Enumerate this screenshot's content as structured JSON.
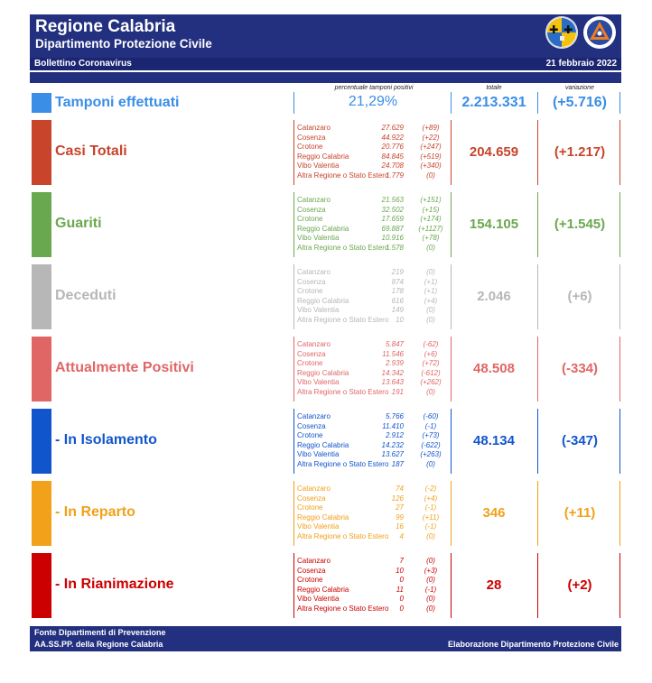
{
  "header": {
    "title": "Regione Calabria",
    "subtitle": "Dipartimento Protezione Civile",
    "bulletin": "Bollettino Coronavirus",
    "date": "21 febbraio 2022"
  },
  "columns": {
    "percent_label": "percentuale tamponi positivi",
    "total_label": "totale",
    "var_label": "variazione"
  },
  "tamponi": {
    "label": "Tamponi effettuati",
    "percent": "21,29%",
    "total": "2.213.331",
    "var": "(+5.716)",
    "color": "#3a8ee6"
  },
  "rows": [
    {
      "label": "Casi Totali",
      "color": "#c8442b",
      "total": "204.659",
      "var": "(+1.217)",
      "provinces": [
        {
          "name": "Catanzaro",
          "value": "27.629",
          "delta": "(+89)"
        },
        {
          "name": "Cosenza",
          "value": "44.922",
          "delta": "(+22)"
        },
        {
          "name": "Crotone",
          "value": "20.776",
          "delta": "(+247)"
        },
        {
          "name": "Reggio Calabria",
          "value": "84.845",
          "delta": "(+519)"
        },
        {
          "name": "Vibo Valentia",
          "value": "24.708",
          "delta": "(+340)"
        },
        {
          "name": "Altra Regione o Stato Estero",
          "value": "1.779",
          "delta": "(0)"
        }
      ]
    },
    {
      "label": "Guariti",
      "color": "#6aa84f",
      "total": "154.105",
      "var": "(+1.545)",
      "provinces": [
        {
          "name": "Catanzaro",
          "value": "21.563",
          "delta": "(+151)"
        },
        {
          "name": "Cosenza",
          "value": "32.502",
          "delta": "(+15)"
        },
        {
          "name": "Crotone",
          "value": "17.659",
          "delta": "(+174)"
        },
        {
          "name": "Reggio Calabria",
          "value": "69.887",
          "delta": "(+1127)"
        },
        {
          "name": "Vibo Valentia",
          "value": "10.916",
          "delta": "(+78)"
        },
        {
          "name": "Altra Regione o Stato Estero",
          "value": "1.578",
          "delta": "(0)"
        }
      ]
    },
    {
      "label": "Deceduti",
      "color": "#b7b7b7",
      "total": "2.046",
      "var": "(+6)",
      "provinces": [
        {
          "name": "Catanzaro",
          "value": "219",
          "delta": "(0)"
        },
        {
          "name": "Cosenza",
          "value": "874",
          "delta": "(+1)"
        },
        {
          "name": "Crotone",
          "value": "178",
          "delta": "(+1)"
        },
        {
          "name": "Reggio Calabria",
          "value": "616",
          "delta": "(+4)"
        },
        {
          "name": "Vibo Valentia",
          "value": "149",
          "delta": "(0)"
        },
        {
          "name": "Altra Regione o Stato Estero",
          "value": "10",
          "delta": "(0)"
        }
      ]
    },
    {
      "label": "Attualmente Positivi",
      "color": "#e06666",
      "total": "48.508",
      "var": "(-334)",
      "provinces": [
        {
          "name": "Catanzaro",
          "value": "5.847",
          "delta": "(-62)"
        },
        {
          "name": "Cosenza",
          "value": "11.546",
          "delta": "(+6)"
        },
        {
          "name": "Crotone",
          "value": "2.939",
          "delta": "(+72)"
        },
        {
          "name": "Reggio Calabria",
          "value": "14.342",
          "delta": "(-612)"
        },
        {
          "name": "Vibo Valentia",
          "value": "13.643",
          "delta": "(+262)"
        },
        {
          "name": "Altra Regione o Stato Estero",
          "value": "191",
          "delta": "(0)"
        }
      ]
    },
    {
      "label": "- In Isolamento",
      "color": "#1155cc",
      "total": "48.134",
      "var": "(-347)",
      "provinces": [
        {
          "name": "Catanzaro",
          "value": "5.766",
          "delta": "(-60)"
        },
        {
          "name": "Cosenza",
          "value": "11.410",
          "delta": "(-1)"
        },
        {
          "name": "Crotone",
          "value": "2.912",
          "delta": "(+73)"
        },
        {
          "name": "Reggio Calabria",
          "value": "14.232",
          "delta": "(-622)"
        },
        {
          "name": "Vibo Valentia",
          "value": "13.627",
          "delta": "(+263)"
        },
        {
          "name": "Altra Regione o Stato Estero",
          "value": "187",
          "delta": "(0)"
        }
      ]
    },
    {
      "label": "- In Reparto",
      "color": "#f1a11a",
      "total": "346",
      "var": "(+11)",
      "provinces": [
        {
          "name": "Catanzaro",
          "value": "74",
          "delta": "(-2)"
        },
        {
          "name": "Cosenza",
          "value": "126",
          "delta": "(+4)"
        },
        {
          "name": "Crotone",
          "value": "27",
          "delta": "(-1)"
        },
        {
          "name": "Reggio Calabria",
          "value": "99",
          "delta": "(+11)"
        },
        {
          "name": "Vibo Valentia",
          "value": "16",
          "delta": "(-1)"
        },
        {
          "name": "Altra Regione o Stato Estero",
          "value": "4",
          "delta": "(0)"
        }
      ]
    },
    {
      "label": "- In Rianimazione",
      "color": "#cc0000",
      "total": "28",
      "var": "(+2)",
      "provinces": [
        {
          "name": "Catanzaro",
          "value": "7",
          "delta": "(0)"
        },
        {
          "name": "Cosenza",
          "value": "10",
          "delta": "(+3)"
        },
        {
          "name": "Crotone",
          "value": "0",
          "delta": "(0)"
        },
        {
          "name": "Reggio Calabria",
          "value": "11",
          "delta": "(-1)"
        },
        {
          "name": "Vibo Valentia",
          "value": "0",
          "delta": "(0)"
        },
        {
          "name": "Altra Regione o Stato Estero",
          "value": "0",
          "delta": "(0)"
        }
      ]
    }
  ],
  "footer": {
    "line1": "Fonte Dipartimenti di Prevenzione",
    "line2": "AA.SS.PP.  della Regione Calabria",
    "right": "Elaborazione Dipartimento Protezione Civile"
  }
}
